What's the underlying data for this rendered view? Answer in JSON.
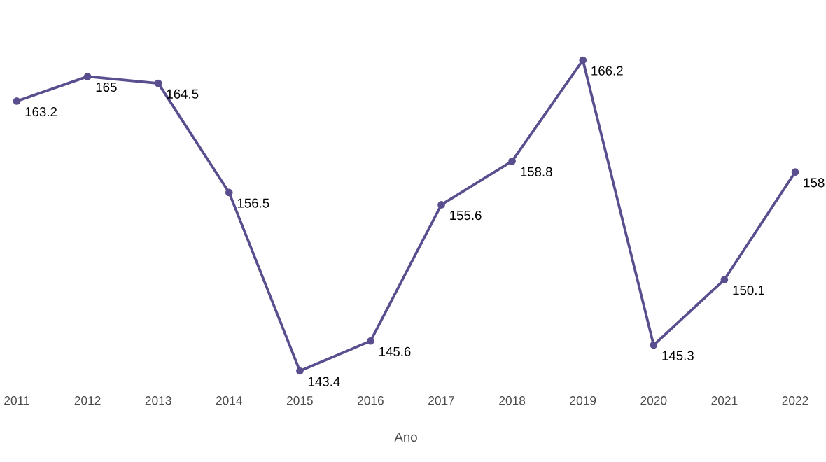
{
  "chart_data": {
    "type": "line",
    "xlabel": "Ano",
    "categories": [
      "2011",
      "2012",
      "2013",
      "2014",
      "2015",
      "2016",
      "2017",
      "2018",
      "2019",
      "2020",
      "2021",
      "2022"
    ],
    "values": [
      163.2,
      165,
      164.5,
      156.5,
      143.4,
      145.6,
      155.6,
      158.8,
      166.2,
      145.3,
      150.1,
      158
    ],
    "color": "#5b4e8f",
    "marker": "circle",
    "line_style": "solid",
    "data_labels": true
  }
}
